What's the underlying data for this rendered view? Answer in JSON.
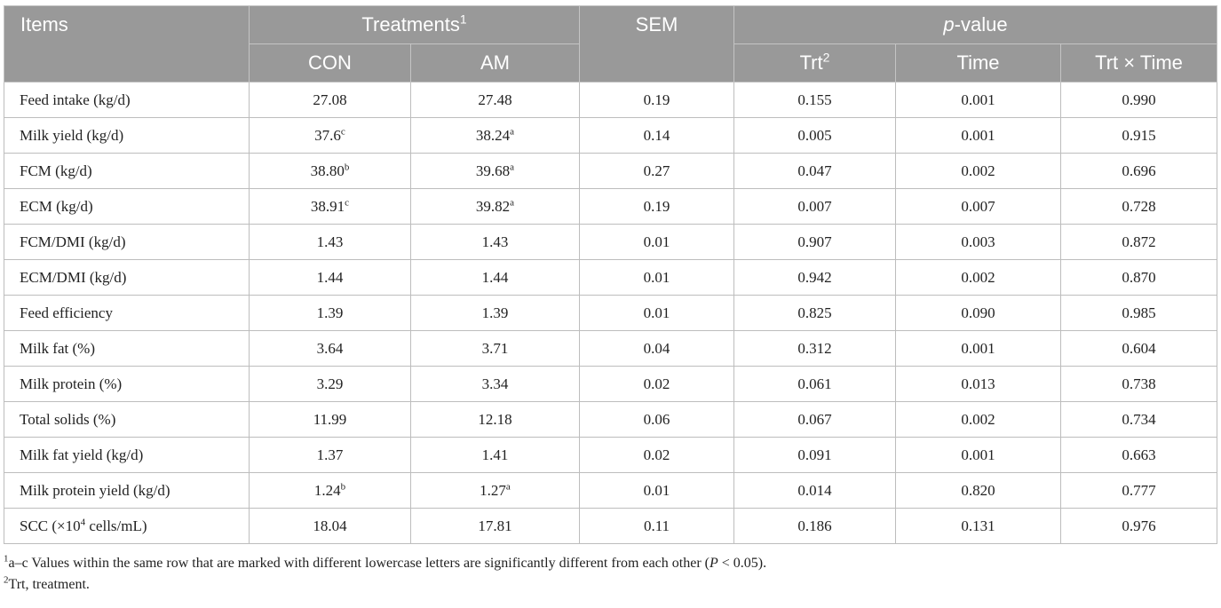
{
  "header": {
    "items": "Items",
    "treatments": "Treatments",
    "treatments_sup": "1",
    "sem": "SEM",
    "pvalue_italic": "p",
    "pvalue_rest": "-value",
    "con": "CON",
    "am": "AM",
    "trt": "Trt",
    "trt_sup": "2",
    "time": "Time",
    "trt_time": "Trt × Time"
  },
  "rows": [
    {
      "item": "Feed intake (kg/d)",
      "con": "27.08",
      "con_sup": "",
      "am": "27.48",
      "am_sup": "",
      "sem": "0.19",
      "trt": "0.155",
      "time": "0.001",
      "trt_time": "0.990"
    },
    {
      "item": "Milk yield (kg/d)",
      "con": "37.6",
      "con_sup": "c",
      "am": "38.24",
      "am_sup": "a",
      "sem": "0.14",
      "trt": "0.005",
      "time": "0.001",
      "trt_time": "0.915"
    },
    {
      "item": "FCM (kg/d)",
      "con": "38.80",
      "con_sup": "b",
      "am": "39.68",
      "am_sup": "a",
      "sem": "0.27",
      "trt": "0.047",
      "time": "0.002",
      "trt_time": "0.696"
    },
    {
      "item": "ECM (kg/d)",
      "con": "38.91",
      "con_sup": "c",
      "am": "39.82",
      "am_sup": "a",
      "sem": "0.19",
      "trt": "0.007",
      "time": "0.007",
      "trt_time": "0.728"
    },
    {
      "item": "FCM/DMI (kg/d)",
      "con": "1.43",
      "con_sup": "",
      "am": "1.43",
      "am_sup": "",
      "sem": "0.01",
      "trt": "0.907",
      "time": "0.003",
      "trt_time": "0.872"
    },
    {
      "item": "ECM/DMI (kg/d)",
      "con": "1.44",
      "con_sup": "",
      "am": "1.44",
      "am_sup": "",
      "sem": "0.01",
      "trt": "0.942",
      "time": "0.002",
      "trt_time": "0.870"
    },
    {
      "item": "Feed efficiency",
      "con": "1.39",
      "con_sup": "",
      "am": "1.39",
      "am_sup": "",
      "sem": "0.01",
      "trt": "0.825",
      "time": "0.090",
      "trt_time": "0.985"
    },
    {
      "item": "Milk fat (%)",
      "con": "3.64",
      "con_sup": "",
      "am": "3.71",
      "am_sup": "",
      "sem": "0.04",
      "trt": "0.312",
      "time": "0.001",
      "trt_time": "0.604"
    },
    {
      "item": "Milk protein (%)",
      "con": "3.29",
      "con_sup": "",
      "am": "3.34",
      "am_sup": "",
      "sem": "0.02",
      "trt": "0.061",
      "time": "0.013",
      "trt_time": "0.738"
    },
    {
      "item": "Total solids (%)",
      "con": "11.99",
      "con_sup": "",
      "am": "12.18",
      "am_sup": "",
      "sem": "0.06",
      "trt": "0.067",
      "time": "0.002",
      "trt_time": "0.734"
    },
    {
      "item": "Milk fat yield (kg/d)",
      "con": "1.37",
      "con_sup": "",
      "am": "1.41",
      "am_sup": "",
      "sem": "0.02",
      "trt": "0.091",
      "time": "0.001",
      "trt_time": "0.663"
    },
    {
      "item": "Milk protein yield (kg/d)",
      "con": "1.24",
      "con_sup": "b",
      "am": "1.27",
      "am_sup": "a",
      "sem": "0.01",
      "trt": "0.014",
      "time": "0.820",
      "trt_time": "0.777"
    },
    {
      "item_pre": "SCC (×10",
      "item_sup": "4",
      "item_post": " cells/mL)",
      "con": "18.04",
      "con_sup": "",
      "am": "17.81",
      "am_sup": "",
      "sem": "0.11",
      "trt": "0.186",
      "time": "0.131",
      "trt_time": "0.976"
    }
  ],
  "footnotes": {
    "n1_sup": "1",
    "n1_text": "a–c Values within the same row that are marked with different lowercase letters are significantly different from each other (",
    "n1_p": "P",
    "n1_end": " < 0.05).",
    "n2_sup": "2",
    "n2_text": "Trt, treatment."
  }
}
